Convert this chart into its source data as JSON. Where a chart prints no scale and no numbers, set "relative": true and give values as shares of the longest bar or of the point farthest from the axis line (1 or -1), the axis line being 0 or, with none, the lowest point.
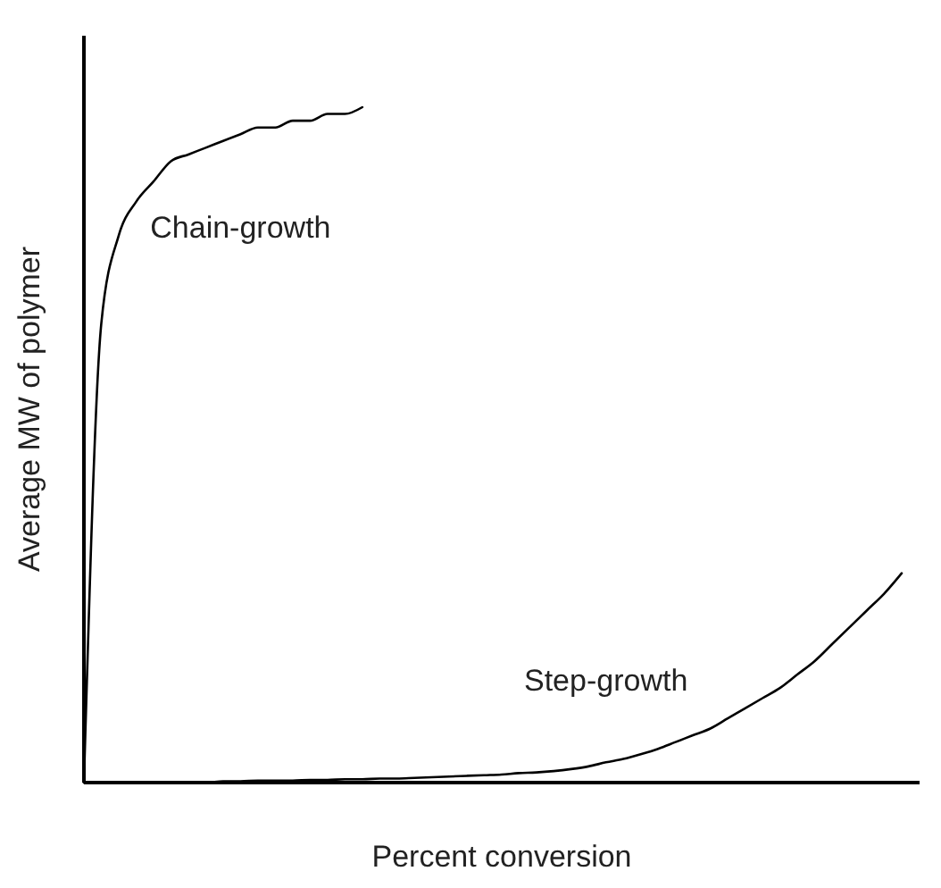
{
  "chart_data": {
    "type": "line",
    "relative": true,
    "xlabel": "Percent conversion",
    "ylabel": "Average MW of polymer",
    "categories": [
      null,
      null,
      null,
      null,
      null,
      null,
      null,
      null,
      null,
      null,
      null,
      null,
      null,
      null,
      null,
      null,
      null,
      null,
      null,
      null,
      null,
      null,
      null,
      null,
      null,
      null,
      null,
      null,
      null,
      null,
      null,
      null,
      null,
      null,
      null,
      null,
      null,
      null,
      null,
      null,
      null,
      null,
      null,
      null,
      null,
      null,
      null,
      null
    ],
    "series": [
      {
        "name": "Chain-growth",
        "color": "#000000",
        "values": [
          0,
          0.68,
          0.81,
          0.86,
          0.89,
          0.92,
          0.93,
          0.94,
          0.95,
          0.96,
          0.97,
          0.97,
          0.98,
          0.98,
          0.99,
          0.99,
          1,
          null,
          null,
          null,
          null,
          null,
          null,
          null,
          null,
          null,
          null,
          null,
          null,
          null,
          null,
          null,
          null,
          null,
          null,
          null,
          null,
          null,
          null,
          null,
          null,
          null,
          null,
          null,
          null,
          null,
          null,
          null
        ]
      },
      {
        "name": "Step-growth",
        "color": "#000000",
        "values": [
          0,
          0,
          0,
          0,
          0,
          0,
          0,
          0,
          0.002,
          0.002,
          0.003,
          0.003,
          0.003,
          0.004,
          0.004,
          0.005,
          0.005,
          0.006,
          0.006,
          0.007,
          0.008,
          0.009,
          0.01,
          0.011,
          0.012,
          0.014,
          0.015,
          0.017,
          0.02,
          0.024,
          0.03,
          0.035,
          0.042,
          0.05,
          0.06,
          0.07,
          0.08,
          0.095,
          0.11,
          0.125,
          0.14,
          0.16,
          0.18,
          0.205,
          0.23,
          0.255,
          0.28,
          0.31
        ]
      }
    ]
  }
}
